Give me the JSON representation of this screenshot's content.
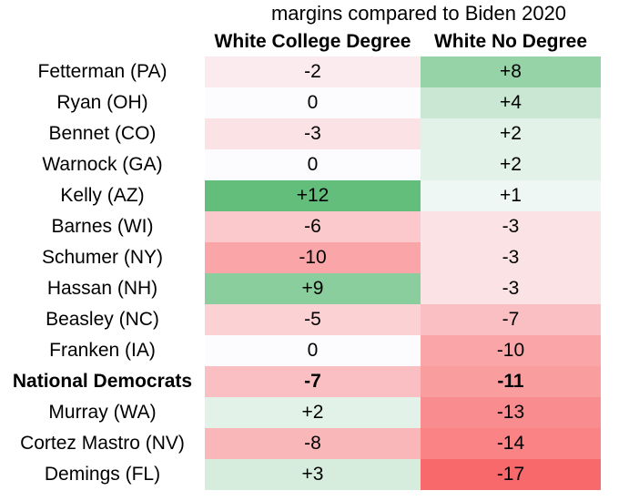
{
  "chart_data": {
    "type": "table",
    "title": "margins compared to Biden 2020",
    "columns": [
      "White College Degree",
      "White No Degree"
    ],
    "rows": [
      {
        "label": "Fetterman (PA)",
        "values": [
          -2,
          8
        ]
      },
      {
        "label": "Ryan (OH)",
        "values": [
          0,
          4
        ]
      },
      {
        "label": "Bennet (CO)",
        "values": [
          -3,
          2
        ]
      },
      {
        "label": "Warnock (GA)",
        "values": [
          0,
          2
        ]
      },
      {
        "label": "Kelly (AZ)",
        "values": [
          12,
          1
        ]
      },
      {
        "label": "Barnes (WI)",
        "values": [
          -6,
          -3
        ]
      },
      {
        "label": "Schumer (NY)",
        "values": [
          -10,
          -3
        ]
      },
      {
        "label": "Hassan (NH)",
        "values": [
          9,
          -3
        ]
      },
      {
        "label": "Beasley (NC)",
        "values": [
          -5,
          -7
        ]
      },
      {
        "label": "Franken (IA)",
        "values": [
          0,
          -10
        ]
      },
      {
        "label": "National Democrats",
        "values": [
          -7,
          -11
        ],
        "bold": true
      },
      {
        "label": "Murray (WA)",
        "values": [
          2,
          -13
        ]
      },
      {
        "label": "Cortez Mastro (NV)",
        "values": [
          -8,
          -14
        ]
      },
      {
        "label": "Demings (FL)",
        "values": [
          3,
          -17
        ]
      }
    ],
    "color_scale": {
      "negative": "#f8696b",
      "neutral": "#fcfcff",
      "positive": "#63be7b",
      "min": -17,
      "max": 12
    }
  }
}
